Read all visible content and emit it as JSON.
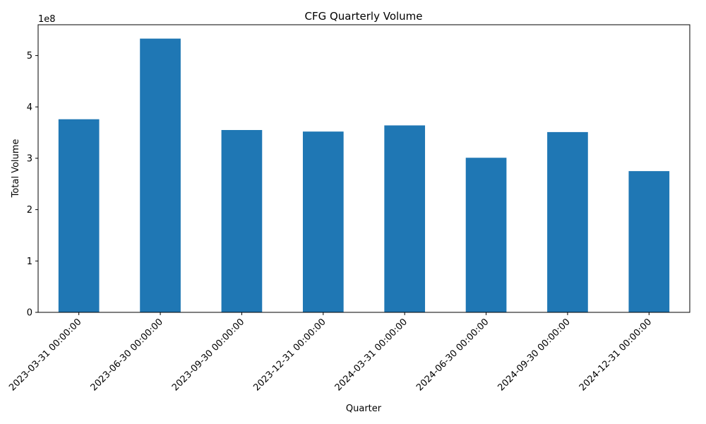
{
  "chart_data": {
    "type": "bar",
    "title": "CFG Quarterly Volume",
    "xlabel": "Quarter",
    "ylabel": "Total Volume",
    "offset_label": "1e8",
    "categories": [
      "2023-03-31 00:00:00",
      "2023-06-30 00:00:00",
      "2023-09-30 00:00:00",
      "2023-12-31 00:00:00",
      "2024-03-31 00:00:00",
      "2024-06-30 00:00:00",
      "2024-09-30 00:00:00",
      "2024-12-31 00:00:00"
    ],
    "values": [
      376000000,
      533000000,
      355000000,
      352000000,
      364000000,
      301000000,
      351000000,
      275000000
    ],
    "ylim": [
      0,
      560000000
    ],
    "yticks": [
      0,
      1,
      2,
      3,
      4,
      5
    ],
    "ytick_scale": 100000000,
    "bar_color": "#1f77b4",
    "grid": false,
    "legend": "none"
  }
}
